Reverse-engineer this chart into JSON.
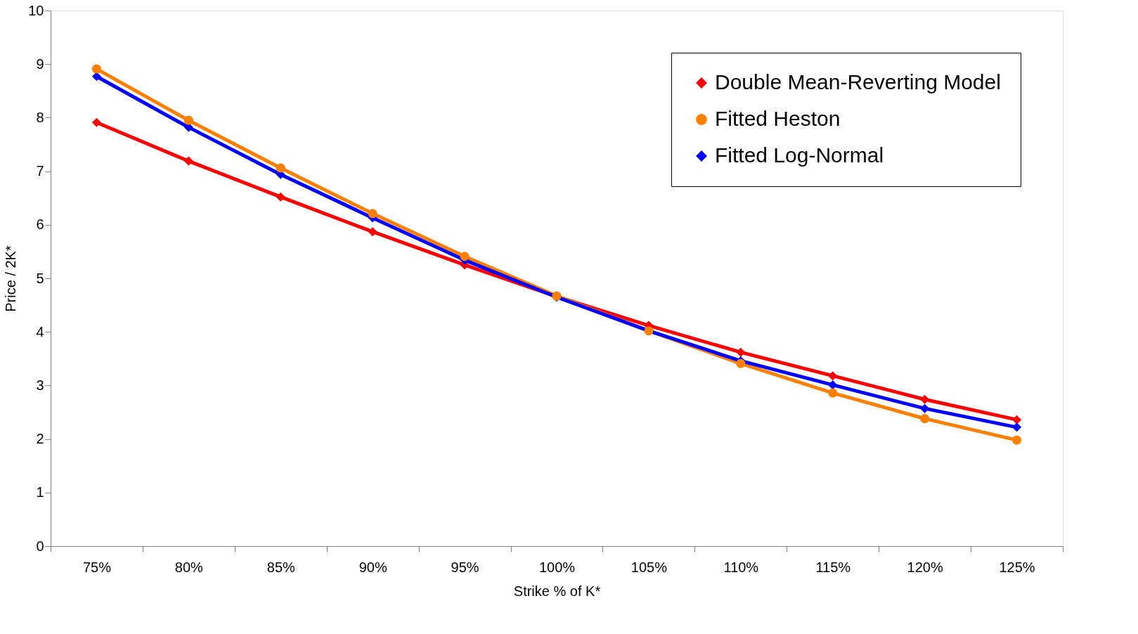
{
  "chart_data": {
    "type": "line",
    "xlabel": "Strike % of K*",
    "ylabel": "Price / 2K*",
    "categories": [
      "75%",
      "80%",
      "85%",
      "90%",
      "95%",
      "100%",
      "105%",
      "110%",
      "115%",
      "120%",
      "125%"
    ],
    "series": [
      {
        "name": "Double Mean-Reverting Model",
        "color": "#ff0000",
        "marker": "diamond",
        "values": [
          7.91,
          7.19,
          6.52,
          5.87,
          5.25,
          4.66,
          4.12,
          3.62,
          3.18,
          2.74,
          2.36
        ]
      },
      {
        "name": "Fitted Heston",
        "color": "#ff7f00",
        "marker": "circle",
        "values": [
          8.91,
          7.95,
          7.06,
          6.21,
          5.41,
          4.67,
          4.02,
          3.41,
          2.86,
          2.38,
          1.98
        ]
      },
      {
        "name": "Fitted Log-Normal",
        "color": "#0000ff",
        "marker": "diamond",
        "values": [
          8.77,
          7.82,
          6.94,
          6.13,
          5.34,
          4.65,
          4.02,
          3.46,
          3.01,
          2.57,
          2.22
        ]
      }
    ],
    "ylim": [
      0,
      10
    ],
    "yticks": [
      0,
      1,
      2,
      3,
      4,
      5,
      6,
      7,
      8,
      9,
      10
    ],
    "grid": false,
    "legend": "top right",
    "line_style": "solid"
  }
}
